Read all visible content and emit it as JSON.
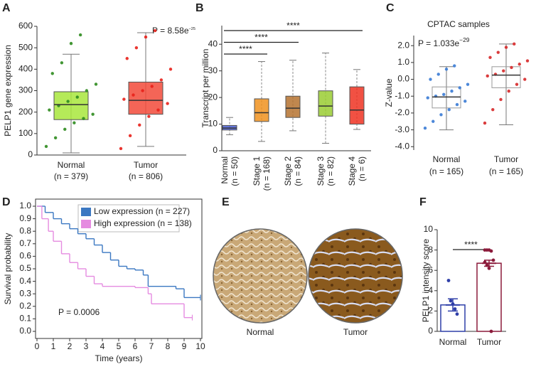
{
  "chart_data": [
    {
      "panel": "A",
      "type": "box",
      "ylabel": "PELP1 gene expression",
      "categories": [
        "Normal",
        "Tumor"
      ],
      "sublabels": [
        "(n = 379)",
        "(n = 806)"
      ],
      "annotation": {
        "text": "P = 8.58e",
        "sup": "−25"
      },
      "boxes": [
        {
          "min": 10,
          "q1": 165,
          "median": 235,
          "q3": 295,
          "max": 470
        },
        {
          "min": 40,
          "q1": 190,
          "median": 255,
          "q3": 340,
          "max": 570
        }
      ],
      "points": [
        [
          40,
          80,
          120,
          150,
          170,
          190,
          210,
          230,
          250,
          270,
          300,
          330,
          380,
          430,
          520,
          560
        ],
        [
          30,
          90,
          140,
          180,
          210,
          240,
          260,
          280,
          300,
          320,
          350,
          400,
          450,
          500,
          550,
          580
        ]
      ],
      "colors": [
        "#a8e63c",
        "#f24a3a"
      ],
      "point_colors": [
        "#2e8b1e",
        "#e8201a"
      ],
      "ylim": [
        0,
        600
      ],
      "yticks": [
        0,
        100,
        200,
        300,
        400,
        500,
        600
      ]
    },
    {
      "panel": "B",
      "type": "box",
      "ylabel": "Transcript per million",
      "categories": [
        "Normal",
        "Stage 1",
        "Stage 2",
        "Stage 3",
        "Stage 4"
      ],
      "sublabels": [
        "(n = 50)",
        "(n = 168)",
        "(n = 84)",
        "(n = 82)",
        "(n = 6)"
      ],
      "boxes": [
        {
          "min": 6,
          "q1": 7.8,
          "median": 8.5,
          "q3": 9.5,
          "max": 12.5
        },
        {
          "min": 3.5,
          "q1": 11,
          "median": 14.3,
          "q3": 19.5,
          "max": 33.5
        },
        {
          "min": 7.5,
          "q1": 12.5,
          "median": 16,
          "q3": 20.5,
          "max": 34
        },
        {
          "min": 2.8,
          "q1": 13,
          "median": 16.8,
          "q3": 22.5,
          "max": 36.7
        },
        {
          "min": 8,
          "q1": 10,
          "median": 15.3,
          "q3": 24,
          "max": 30.5
        }
      ],
      "colors": [
        "#4b5fd6",
        "#f0921e",
        "#b5722f",
        "#9acd32",
        "#ee3322"
      ],
      "significance": [
        {
          "from": "Normal",
          "to": "Stage 1",
          "label": "****"
        },
        {
          "from": "Normal",
          "to": "Stage 2",
          "label": "****"
        },
        {
          "from": "Normal",
          "to": "Stage 4",
          "label": "****"
        }
      ],
      "ylim": [
        0,
        47
      ],
      "yticks": [
        0,
        10,
        20,
        30,
        40
      ]
    },
    {
      "panel": "C",
      "type": "box",
      "title": "CPTAC samples",
      "ylabel": "Z-value",
      "box_style": "outline",
      "categories": [
        "Normal",
        "Tumor"
      ],
      "sublabels": [
        "(n = 165)",
        "(n = 165)"
      ],
      "annotation": {
        "text": "P = 1.033e",
        "sup": "−29"
      },
      "boxes": [
        {
          "min": -3,
          "q1": -1.7,
          "median": -1.05,
          "q3": -0.45,
          "max": 0.75
        },
        {
          "min": -2.7,
          "q1": -0.5,
          "median": 0.25,
          "q3": 0.75,
          "max": 2.1
        }
      ],
      "points": [
        [
          -2.9,
          -2.5,
          -2.1,
          -1.8,
          -1.5,
          -1.3,
          -1.1,
          -1.0,
          -0.9,
          -0.7,
          -0.5,
          -0.3,
          0,
          0.3,
          0.6,
          0.8
        ],
        [
          -2.6,
          -1.8,
          -1.2,
          -0.7,
          -0.3,
          0,
          0.2,
          0.3,
          0.5,
          0.7,
          0.9,
          1.1,
          1.3,
          1.6,
          1.9,
          2.1
        ]
      ],
      "colors": [
        "#999999",
        "#999999"
      ],
      "point_colors": [
        "#3a7bd5",
        "#d62728"
      ],
      "ylim": [
        -4.2,
        2.6
      ],
      "yticks": [
        {
          "value": -4,
          "label": "-4.0"
        },
        {
          "value": -3,
          "label": "-3.0"
        },
        {
          "value": -2,
          "label": "-2.0"
        },
        {
          "value": -1,
          "label": "-1.0"
        },
        {
          "value": 0,
          "label": "0.0"
        },
        {
          "value": 1,
          "label": "1.0"
        },
        {
          "value": 2,
          "label": "2.0"
        }
      ]
    },
    {
      "panel": "D",
      "type": "line",
      "step": true,
      "xlabel": "Time (years)",
      "ylabel": "Survival probability",
      "annotation": {
        "text": "P = 0.0006"
      },
      "legend": "top",
      "series": [
        {
          "name": "Low expression (n = 227)",
          "color": "#3b78c2",
          "x": [
            0,
            0.5,
            1,
            1.5,
            2,
            2.5,
            3,
            3.5,
            4,
            4.5,
            5,
            5.5,
            6,
            6.5,
            6.8,
            8.5,
            9,
            10
          ],
          "values": [
            1,
            0.95,
            0.9,
            0.86,
            0.82,
            0.78,
            0.74,
            0.69,
            0.63,
            0.57,
            0.52,
            0.5,
            0.49,
            0.45,
            0.36,
            0.34,
            0.27,
            0.27
          ]
        },
        {
          "name": "High expression (n = 138)",
          "color": "#e58be0",
          "x": [
            0,
            0.3,
            0.7,
            1,
            1.5,
            2,
            2.5,
            3,
            3.5,
            4,
            6,
            6.8,
            7,
            9,
            9.5
          ],
          "values": [
            1,
            0.9,
            0.8,
            0.72,
            0.62,
            0.55,
            0.5,
            0.44,
            0.38,
            0.36,
            0.35,
            0.3,
            0.22,
            0.11,
            0.11
          ]
        }
      ],
      "xlim": [
        0,
        10
      ],
      "xticks": [
        0,
        1,
        2,
        3,
        4,
        5,
        6,
        7,
        8,
        9,
        10
      ],
      "ylim": [
        0,
        1
      ],
      "yticks": [
        {
          "value": 0,
          "label": "0.0"
        },
        {
          "value": 0.1,
          "label": "0.1"
        },
        {
          "value": 0.2,
          "label": "0.2"
        },
        {
          "value": 0.3,
          "label": "0.3"
        },
        {
          "value": 0.4,
          "label": "0.4"
        },
        {
          "value": 0.5,
          "label": "0.5"
        },
        {
          "value": 0.6,
          "label": "0.6"
        },
        {
          "value": 0.7,
          "label": "0.7"
        },
        {
          "value": 0.8,
          "label": "0.8"
        },
        {
          "value": 0.9,
          "label": "0.9"
        },
        {
          "value": 1,
          "label": "1.0"
        }
      ]
    },
    {
      "panel": "F",
      "type": "bar",
      "ylabel": "PELP1 intensity score",
      "categories": [
        "Normal",
        "Tumor"
      ],
      "values": [
        2.6,
        6.7
      ],
      "errors": [
        0.6,
        0.3
      ],
      "points": [
        [
          5,
          3,
          2.7,
          2.2,
          1.7
        ],
        [
          8,
          8,
          8,
          7.9,
          7,
          6.8,
          6.5,
          6.2,
          0
        ]
      ],
      "colors": [
        "#2f3fa8",
        "#8b1a3a"
      ],
      "significance": [
        {
          "from": "Normal",
          "to": "Tumor",
          "label": "****"
        }
      ],
      "ylim": [
        0,
        10
      ],
      "yticks": [
        0,
        2,
        4,
        6,
        8,
        10
      ]
    }
  ],
  "image_panel": {
    "panel": "E",
    "labels": [
      "Normal",
      "Tumor"
    ]
  }
}
